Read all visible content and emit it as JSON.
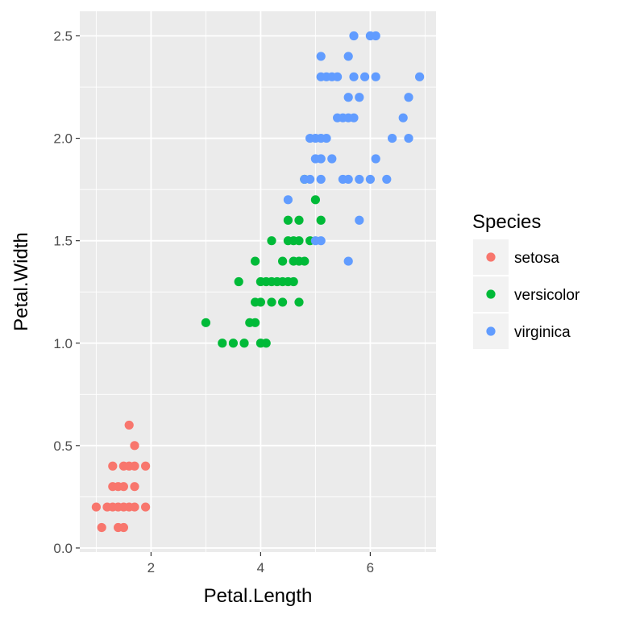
{
  "chart_data": {
    "type": "scatter",
    "xlabel": "Petal.Length",
    "ylabel": "Petal.Width",
    "xlim": [
      0.7,
      7.2
    ],
    "ylim": [
      -0.02,
      2.62
    ],
    "x_ticks": [
      2,
      4,
      6
    ],
    "x_tick_labels": [
      "2",
      "4",
      "6"
    ],
    "y_ticks": [
      0.0,
      0.5,
      1.0,
      1.5,
      2.0,
      2.5
    ],
    "y_tick_labels": [
      "0.0",
      "0.5",
      "1.0",
      "1.5",
      "2.0",
      "2.5"
    ],
    "grid": true,
    "background": "#ebebeb",
    "legend": {
      "title": "Species",
      "position": "right"
    },
    "series": [
      {
        "name": "setosa",
        "color": "#F8766D",
        "points": [
          [
            1.0,
            0.2
          ],
          [
            1.1,
            0.1
          ],
          [
            1.2,
            0.2
          ],
          [
            1.3,
            0.2
          ],
          [
            1.3,
            0.3
          ],
          [
            1.3,
            0.4
          ],
          [
            1.4,
            0.1
          ],
          [
            1.4,
            0.2
          ],
          [
            1.4,
            0.3
          ],
          [
            1.5,
            0.1
          ],
          [
            1.5,
            0.2
          ],
          [
            1.5,
            0.3
          ],
          [
            1.5,
            0.4
          ],
          [
            1.6,
            0.2
          ],
          [
            1.6,
            0.4
          ],
          [
            1.6,
            0.6
          ],
          [
            1.7,
            0.2
          ],
          [
            1.7,
            0.3
          ],
          [
            1.7,
            0.4
          ],
          [
            1.7,
            0.5
          ],
          [
            1.9,
            0.2
          ],
          [
            1.9,
            0.4
          ]
        ]
      },
      {
        "name": "versicolor",
        "color": "#00BA38",
        "points": [
          [
            3.0,
            1.1
          ],
          [
            3.3,
            1.0
          ],
          [
            3.5,
            1.0
          ],
          [
            3.6,
            1.3
          ],
          [
            3.7,
            1.0
          ],
          [
            3.8,
            1.1
          ],
          [
            3.9,
            1.1
          ],
          [
            3.9,
            1.2
          ],
          [
            3.9,
            1.4
          ],
          [
            4.0,
            1.0
          ],
          [
            4.0,
            1.2
          ],
          [
            4.0,
            1.3
          ],
          [
            4.1,
            1.0
          ],
          [
            4.1,
            1.3
          ],
          [
            4.2,
            1.2
          ],
          [
            4.2,
            1.3
          ],
          [
            4.2,
            1.5
          ],
          [
            4.3,
            1.3
          ],
          [
            4.4,
            1.2
          ],
          [
            4.4,
            1.3
          ],
          [
            4.4,
            1.4
          ],
          [
            4.5,
            1.3
          ],
          [
            4.5,
            1.5
          ],
          [
            4.5,
            1.6
          ],
          [
            4.6,
            1.3
          ],
          [
            4.6,
            1.4
          ],
          [
            4.6,
            1.5
          ],
          [
            4.7,
            1.2
          ],
          [
            4.7,
            1.4
          ],
          [
            4.7,
            1.5
          ],
          [
            4.7,
            1.6
          ],
          [
            4.8,
            1.4
          ],
          [
            4.8,
            1.8
          ],
          [
            4.9,
            1.5
          ],
          [
            5.0,
            1.7
          ],
          [
            5.1,
            1.6
          ]
        ]
      },
      {
        "name": "virginica",
        "color": "#619CFF",
        "points": [
          [
            4.5,
            1.7
          ],
          [
            4.8,
            1.8
          ],
          [
            4.9,
            1.8
          ],
          [
            4.9,
            2.0
          ],
          [
            5.0,
            1.5
          ],
          [
            5.0,
            1.9
          ],
          [
            5.0,
            2.0
          ],
          [
            5.1,
            1.5
          ],
          [
            5.1,
            1.8
          ],
          [
            5.1,
            1.9
          ],
          [
            5.1,
            2.0
          ],
          [
            5.1,
            2.3
          ],
          [
            5.1,
            2.4
          ],
          [
            5.2,
            2.0
          ],
          [
            5.2,
            2.3
          ],
          [
            5.3,
            1.9
          ],
          [
            5.3,
            2.3
          ],
          [
            5.4,
            2.1
          ],
          [
            5.4,
            2.3
          ],
          [
            5.5,
            1.8
          ],
          [
            5.5,
            2.1
          ],
          [
            5.6,
            1.4
          ],
          [
            5.6,
            1.8
          ],
          [
            5.6,
            2.1
          ],
          [
            5.6,
            2.2
          ],
          [
            5.6,
            2.4
          ],
          [
            5.7,
            2.1
          ],
          [
            5.7,
            2.3
          ],
          [
            5.7,
            2.5
          ],
          [
            5.8,
            1.6
          ],
          [
            5.8,
            1.8
          ],
          [
            5.8,
            2.2
          ],
          [
            5.9,
            2.3
          ],
          [
            6.0,
            1.8
          ],
          [
            6.0,
            2.5
          ],
          [
            6.1,
            1.9
          ],
          [
            6.1,
            2.3
          ],
          [
            6.1,
            2.5
          ],
          [
            6.3,
            1.8
          ],
          [
            6.4,
            2.0
          ],
          [
            6.6,
            2.1
          ],
          [
            6.7,
            2.0
          ],
          [
            6.7,
            2.2
          ],
          [
            6.9,
            2.3
          ]
        ]
      }
    ]
  }
}
